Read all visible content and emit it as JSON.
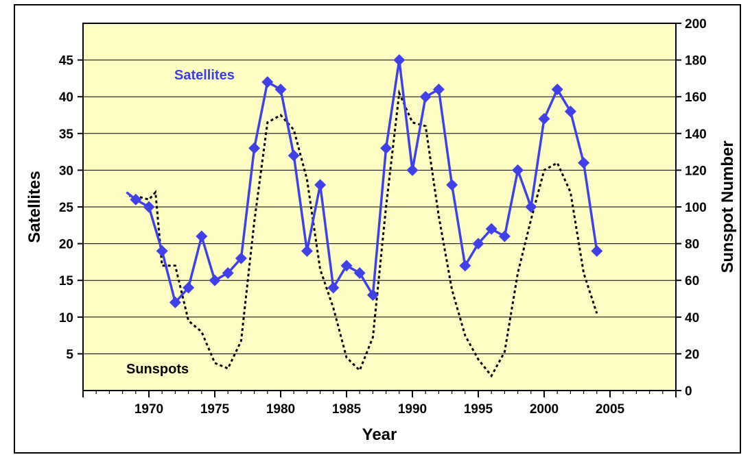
{
  "chart_data": {
    "type": "line",
    "xlabel": "Year",
    "ylabel": "Satellites",
    "y2label": "Sunspot Number",
    "xlim": [
      1965,
      2010
    ],
    "ylim": [
      0,
      50
    ],
    "y2lim": [
      0,
      200
    ],
    "x_ticks": [
      1970,
      1975,
      1980,
      1985,
      1990,
      1995,
      2000,
      2005
    ],
    "y_ticks": [
      5,
      10,
      15,
      20,
      25,
      30,
      35,
      40,
      45
    ],
    "y2_ticks": [
      0,
      20,
      40,
      60,
      80,
      100,
      120,
      140,
      160,
      180,
      200
    ],
    "grid": "horizontal",
    "plot_background": "#fdfdc4",
    "annotations": [
      {
        "text": "Satellites",
        "color": "#3c3ce8"
      },
      {
        "text": "Sunspots",
        "color": "#000000"
      }
    ],
    "series": [
      {
        "name": "Satellites",
        "axis": "left",
        "color": "#4040e8",
        "marker": "diamond",
        "start_point": [
          1968.3,
          27
        ],
        "x": [
          1969,
          1970,
          1971,
          1972,
          1973,
          1974,
          1975,
          1976,
          1977,
          1978,
          1979,
          1980,
          1981,
          1982,
          1983,
          1984,
          1985,
          1986,
          1987,
          1988,
          1989,
          1990,
          1991,
          1992,
          1993,
          1994,
          1995,
          1996,
          1997,
          1998,
          1999,
          2000,
          2001,
          2002,
          2003,
          2004
        ],
        "y": [
          26,
          25,
          19,
          12,
          14,
          21,
          15,
          16,
          18,
          33,
          42,
          41,
          32,
          19,
          28,
          14,
          17,
          16,
          13,
          33,
          45,
          30,
          40,
          41,
          28,
          17,
          20,
          22,
          21,
          30,
          25,
          37,
          41,
          38,
          31,
          19
        ]
      },
      {
        "name": "Sunspots",
        "axis": "right",
        "color": "#000000",
        "style": "dotted",
        "x": [
          1968.5,
          1969,
          1970,
          1970.5,
          1971,
          1972,
          1973,
          1974,
          1975,
          1976,
          1977,
          1978,
          1979,
          1980,
          1981,
          1982,
          1983,
          1984,
          1985,
          1986,
          1987,
          1988,
          1989,
          1990,
          1991,
          1992,
          1993,
          1994,
          1995,
          1996,
          1997,
          1998,
          1999,
          2000,
          2001,
          2002,
          2003,
          2004
        ],
        "y": [
          106,
          106,
          104,
          108,
          68,
          68,
          38,
          32,
          15,
          12,
          27,
          92,
          146,
          150,
          142,
          115,
          66,
          45,
          18,
          11,
          29,
          100,
          162,
          146,
          144,
          95,
          55,
          30,
          17,
          8,
          21,
          64,
          93,
          120,
          124,
          108,
          64,
          42
        ]
      }
    ]
  }
}
